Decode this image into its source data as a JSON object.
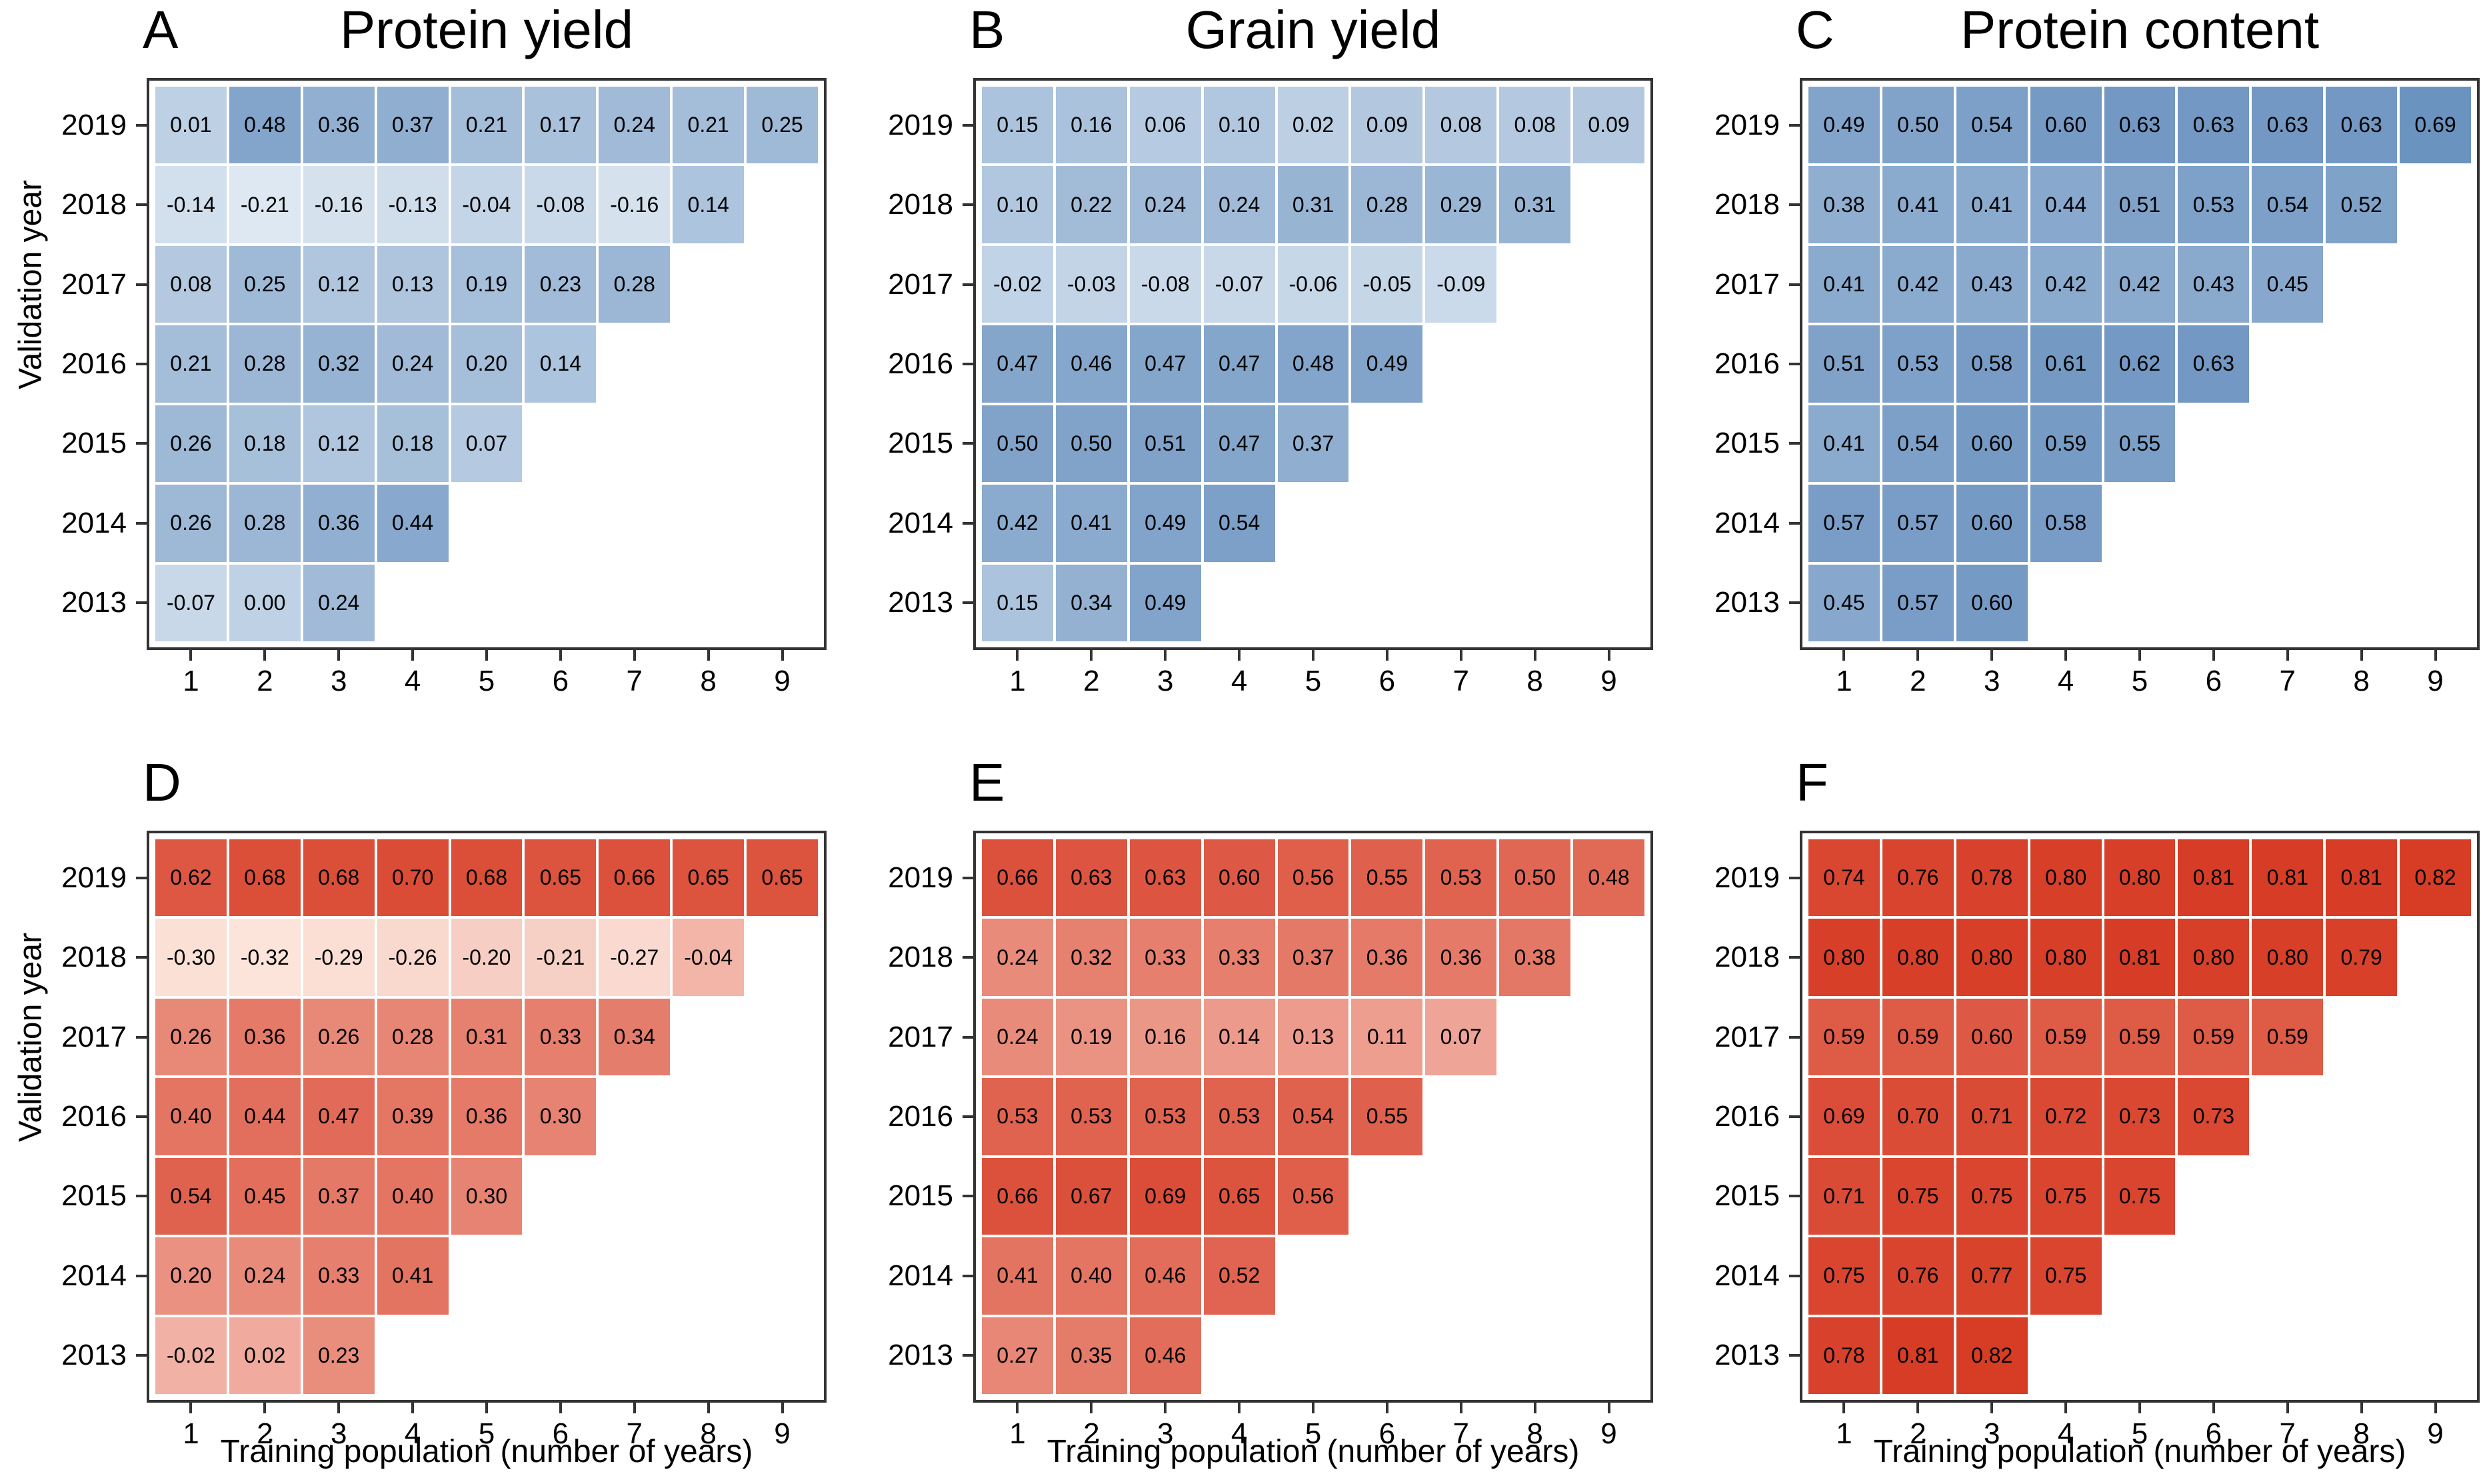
{
  "figure": {
    "ylabel": "Validation year",
    "xlabel": "Training population (number of years)",
    "years": [
      "2019",
      "2018",
      "2017",
      "2016",
      "2015",
      "2014",
      "2013"
    ],
    "x_ticks": [
      "1",
      "2",
      "3",
      "4",
      "5",
      "6",
      "7",
      "8",
      "9"
    ],
    "background": "#ffffff",
    "panel_border_color": "#333333",
    "cell_gap_color": "#ffffff"
  },
  "scales": {
    "blue": {
      "low": "#dde8f2",
      "high": "#6b93c0",
      "vmin": -0.21,
      "vmax": 0.69
    },
    "red": {
      "low": "#fce4db",
      "high": "#d73c25",
      "vmin": -0.32,
      "vmax": 0.82
    }
  },
  "chart_data": [
    {
      "panel": "A",
      "title": "Protein yield",
      "type": "heatmap",
      "colorscale": "blue",
      "x_range": [
        1,
        9
      ],
      "years": [
        "2019",
        "2018",
        "2017",
        "2016",
        "2015",
        "2014",
        "2013"
      ],
      "rows": [
        [
          "0.01",
          "0.48",
          "0.36",
          "0.37",
          "0.21",
          "0.17",
          "0.24",
          "0.21",
          "0.25"
        ],
        [
          "-0.14",
          "-0.21",
          "-0.16",
          "-0.13",
          "-0.04",
          "-0.08",
          "-0.16",
          "0.14"
        ],
        [
          "0.08",
          "0.25",
          "0.12",
          "0.13",
          "0.19",
          "0.23",
          "0.28"
        ],
        [
          "0.21",
          "0.28",
          "0.32",
          "0.24",
          "0.20",
          "0.14"
        ],
        [
          "0.26",
          "0.18",
          "0.12",
          "0.18",
          "0.07"
        ],
        [
          "0.26",
          "0.28",
          "0.36",
          "0.44"
        ],
        [
          "-0.07",
          "0.00",
          "0.24"
        ]
      ]
    },
    {
      "panel": "B",
      "title": "Grain yield",
      "type": "heatmap",
      "colorscale": "blue",
      "x_range": [
        1,
        9
      ],
      "years": [
        "2019",
        "2018",
        "2017",
        "2016",
        "2015",
        "2014",
        "2013"
      ],
      "rows": [
        [
          "0.15",
          "0.16",
          "0.06",
          "0.10",
          "0.02",
          "0.09",
          "0.08",
          "0.08",
          "0.09"
        ],
        [
          "0.10",
          "0.22",
          "0.24",
          "0.24",
          "0.31",
          "0.28",
          "0.29",
          "0.31"
        ],
        [
          "-0.02",
          "-0.03",
          "-0.08",
          "-0.07",
          "-0.06",
          "-0.05",
          "-0.09"
        ],
        [
          "0.47",
          "0.46",
          "0.47",
          "0.47",
          "0.48",
          "0.49"
        ],
        [
          "0.50",
          "0.50",
          "0.51",
          "0.47",
          "0.37"
        ],
        [
          "0.42",
          "0.41",
          "0.49",
          "0.54"
        ],
        [
          "0.15",
          "0.34",
          "0.49"
        ]
      ]
    },
    {
      "panel": "C",
      "title": "Protein content",
      "type": "heatmap",
      "colorscale": "blue",
      "x_range": [
        1,
        9
      ],
      "years": [
        "2019",
        "2018",
        "2017",
        "2016",
        "2015",
        "2014",
        "2013"
      ],
      "rows": [
        [
          "0.49",
          "0.50",
          "0.54",
          "0.60",
          "0.63",
          "0.63",
          "0.63",
          "0.63",
          "0.69"
        ],
        [
          "0.38",
          "0.41",
          "0.41",
          "0.44",
          "0.51",
          "0.53",
          "0.54",
          "0.52"
        ],
        [
          "0.41",
          "0.42",
          "0.43",
          "0.42",
          "0.42",
          "0.43",
          "0.45"
        ],
        [
          "0.51",
          "0.53",
          "0.58",
          "0.61",
          "0.62",
          "0.63"
        ],
        [
          "0.41",
          "0.54",
          "0.60",
          "0.59",
          "0.55"
        ],
        [
          "0.57",
          "0.57",
          "0.60",
          "0.58"
        ],
        [
          "0.45",
          "0.57",
          "0.60"
        ]
      ]
    },
    {
      "panel": "D",
      "title": "",
      "type": "heatmap",
      "colorscale": "red",
      "x_range": [
        1,
        9
      ],
      "years": [
        "2019",
        "2018",
        "2017",
        "2016",
        "2015",
        "2014",
        "2013"
      ],
      "rows": [
        [
          "0.62",
          "0.68",
          "0.68",
          "0.70",
          "0.68",
          "0.65",
          "0.66",
          "0.65",
          "0.65"
        ],
        [
          "-0.30",
          "-0.32",
          "-0.29",
          "-0.26",
          "-0.20",
          "-0.21",
          "-0.27",
          "-0.04"
        ],
        [
          "0.26",
          "0.36",
          "0.26",
          "0.28",
          "0.31",
          "0.33",
          "0.34"
        ],
        [
          "0.40",
          "0.44",
          "0.47",
          "0.39",
          "0.36",
          "0.30"
        ],
        [
          "0.54",
          "0.45",
          "0.37",
          "0.40",
          "0.30"
        ],
        [
          "0.20",
          "0.24",
          "0.33",
          "0.41"
        ],
        [
          "-0.02",
          "0.02",
          "0.23"
        ]
      ]
    },
    {
      "panel": "E",
      "title": "",
      "type": "heatmap",
      "colorscale": "red",
      "x_range": [
        1,
        9
      ],
      "years": [
        "2019",
        "2018",
        "2017",
        "2016",
        "2015",
        "2014",
        "2013"
      ],
      "rows": [
        [
          "0.66",
          "0.63",
          "0.63",
          "0.60",
          "0.56",
          "0.55",
          "0.53",
          "0.50",
          "0.48"
        ],
        [
          "0.24",
          "0.32",
          "0.33",
          "0.33",
          "0.37",
          "0.36",
          "0.36",
          "0.38"
        ],
        [
          "0.24",
          "0.19",
          "0.16",
          "0.14",
          "0.13",
          "0.11",
          "0.07"
        ],
        [
          "0.53",
          "0.53",
          "0.53",
          "0.53",
          "0.54",
          "0.55"
        ],
        [
          "0.66",
          "0.67",
          "0.69",
          "0.65",
          "0.56"
        ],
        [
          "0.41",
          "0.40",
          "0.46",
          "0.52"
        ],
        [
          "0.27",
          "0.35",
          "0.46"
        ]
      ]
    },
    {
      "panel": "F",
      "title": "",
      "type": "heatmap",
      "colorscale": "red",
      "x_range": [
        1,
        9
      ],
      "years": [
        "2019",
        "2018",
        "2017",
        "2016",
        "2015",
        "2014",
        "2013"
      ],
      "rows": [
        [
          "0.74",
          "0.76",
          "0.78",
          "0.80",
          "0.80",
          "0.81",
          "0.81",
          "0.81",
          "0.82"
        ],
        [
          "0.80",
          "0.80",
          "0.80",
          "0.80",
          "0.81",
          "0.80",
          "0.80",
          "0.79"
        ],
        [
          "0.59",
          "0.59",
          "0.60",
          "0.59",
          "0.59",
          "0.59",
          "0.59"
        ],
        [
          "0.69",
          "0.70",
          "0.71",
          "0.72",
          "0.73",
          "0.73"
        ],
        [
          "0.71",
          "0.75",
          "0.75",
          "0.75",
          "0.75"
        ],
        [
          "0.75",
          "0.76",
          "0.77",
          "0.75"
        ],
        [
          "0.78",
          "0.81",
          "0.82"
        ]
      ]
    }
  ]
}
